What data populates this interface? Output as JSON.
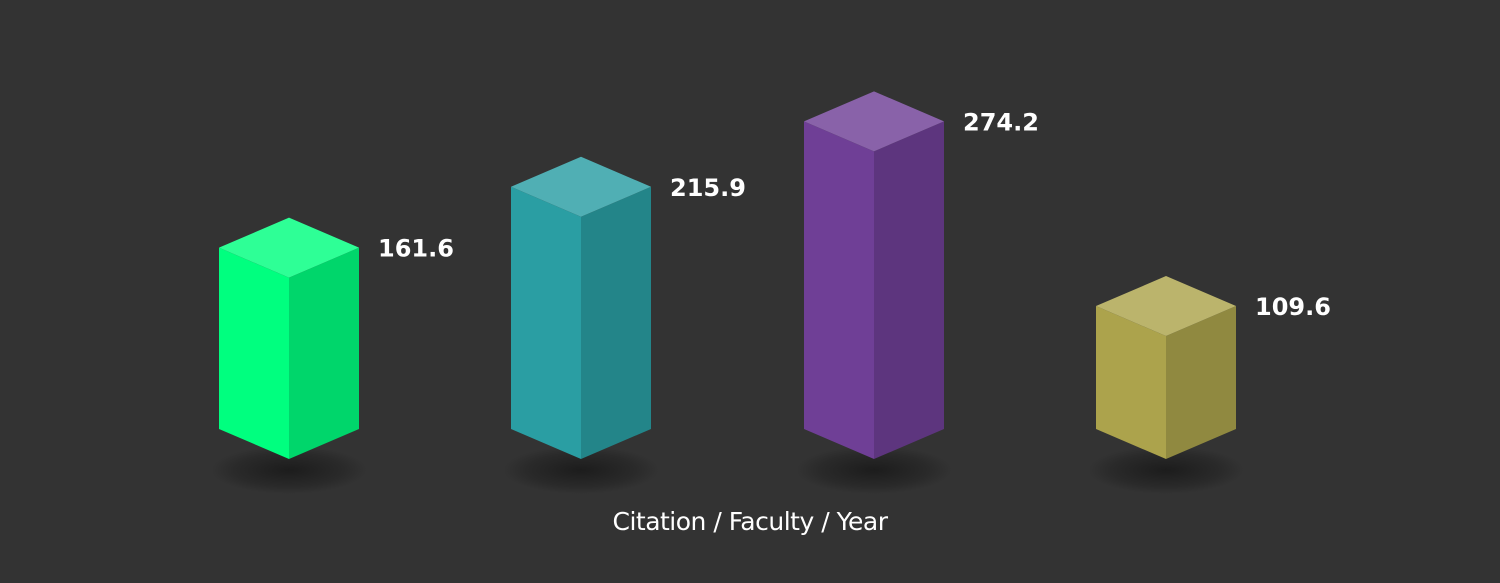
{
  "chart_data": {
    "type": "bar",
    "style": "3d-isometric-columns",
    "xlabel": "Citation / Faculty / Year",
    "categories": [
      "",
      "",
      "",
      ""
    ],
    "series": [
      {
        "values": [
          161.6,
          215.9,
          274.2,
          109.6
        ],
        "labels": [
          "161.6",
          "215.9",
          "274.2",
          "109.6"
        ],
        "colors": [
          "#00ff7f",
          "#2a9ea3",
          "#6f3f96",
          "#aca34c"
        ]
      }
    ],
    "grid": false,
    "legend": "none",
    "background": "#333333"
  }
}
